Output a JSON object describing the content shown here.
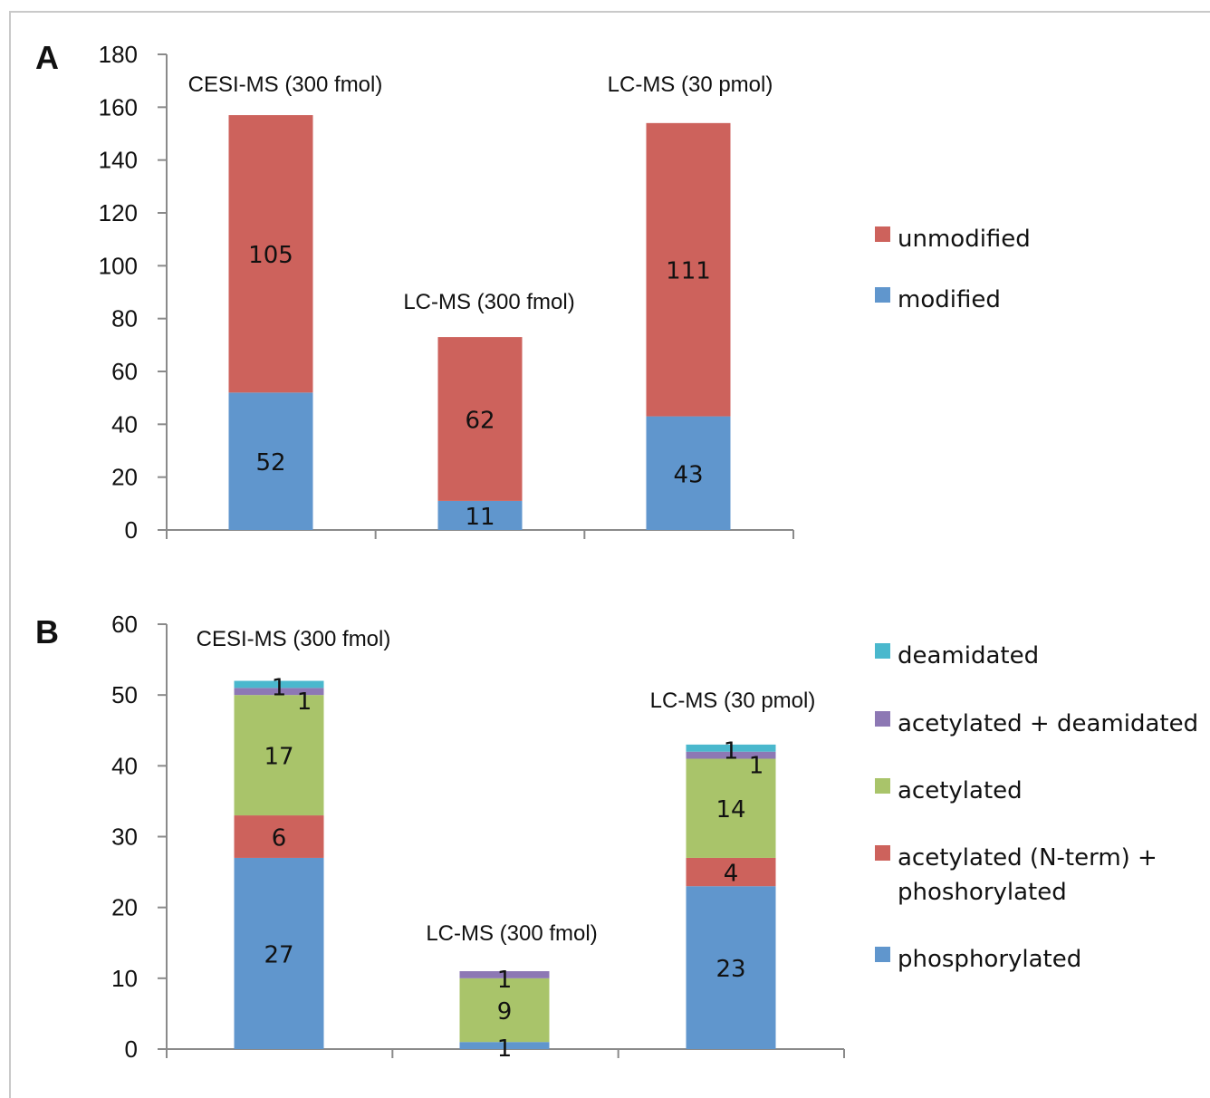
{
  "chart_data": [
    {
      "panel_label": "A",
      "type": "bar",
      "stacked": true,
      "categories": [
        "CESI-MS (300 fmol)",
        "LC-MS (300 fmol)",
        "LC-MS (30 pmol)"
      ],
      "series": [
        {
          "name": "modified",
          "color": "#6096cd",
          "values": [
            52,
            11,
            43
          ]
        },
        {
          "name": "unmodified",
          "color": "#cd625c",
          "values": [
            105,
            62,
            111
          ]
        }
      ],
      "yticks": [
        0,
        20,
        40,
        60,
        80,
        100,
        120,
        140,
        160,
        180
      ],
      "ylim": [
        0,
        180
      ],
      "legend": [
        "unmodified",
        "modified"
      ],
      "legend_placement": "right",
      "grid": false
    },
    {
      "panel_label": "B",
      "type": "bar",
      "stacked": true,
      "categories": [
        "CESI-MS (300 fmol)",
        "LC-MS (300 fmol)",
        "LC-MS (30 pmol)"
      ],
      "series": [
        {
          "name": "phosphorylated",
          "color": "#6096cd",
          "values": [
            27,
            1,
            23
          ]
        },
        {
          "name": "acetylated (N-term) + phoshorylated",
          "color": "#cd625c",
          "values": [
            6,
            0,
            4
          ]
        },
        {
          "name": "acetylated",
          "color": "#a9c46a",
          "values": [
            17,
            9,
            14
          ]
        },
        {
          "name": "acetylated + deamidated",
          "color": "#8d78b4",
          "values": [
            1,
            1,
            1
          ]
        },
        {
          "name": "deamidated",
          "color": "#4ab8cd",
          "values": [
            1,
            0,
            1
          ]
        }
      ],
      "yticks": [
        0,
        10,
        20,
        30,
        40,
        50,
        60
      ],
      "ylim": [
        0,
        60
      ],
      "legend": [
        "deamidated",
        "acetylated + deamidated",
        "acetylated",
        "acetylated (N-term) + phoshorylated",
        "phosphorylated"
      ],
      "legend_placement": "right",
      "grid": false
    }
  ]
}
